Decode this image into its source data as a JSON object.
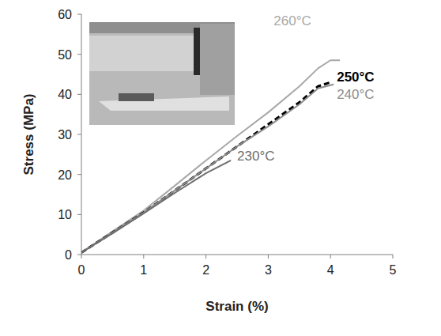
{
  "chart_data": {
    "type": "line",
    "x_label": "Strain (%)",
    "y_label": "Stress (MPa)",
    "xlim": [
      0,
      5
    ],
    "xticks": [
      0,
      1,
      2,
      3,
      4,
      5
    ],
    "ylim": [
      0,
      60
    ],
    "yticks": [
      0,
      10,
      20,
      30,
      40,
      50,
      60
    ],
    "grid": false,
    "series": [
      {
        "name": "260°C",
        "color": "#a8a8a8",
        "line_style": "solid",
        "x": [
          0,
          0.5,
          1,
          1.5,
          2,
          2.5,
          3,
          3.5,
          3.8,
          4.0,
          4.15
        ],
        "values": [
          0.5,
          5.8,
          11,
          17.2,
          23.5,
          29.6,
          35.5,
          42,
          46.5,
          48.5,
          48.5
        ]
      },
      {
        "name": "250°C",
        "color": "#000000",
        "line_style": "dashed",
        "x": [
          0,
          0.5,
          1,
          1.5,
          2,
          2.5,
          3,
          3.5,
          3.8,
          4.0
        ],
        "values": [
          0.5,
          5.5,
          10.5,
          16,
          21.5,
          27,
          32.5,
          38,
          42,
          43
        ]
      },
      {
        "name": "240°C",
        "color": "#8c8c8c",
        "line_style": "solid",
        "x": [
          0,
          0.5,
          1,
          1.5,
          2,
          2.5,
          3,
          3.5,
          3.8,
          4.05
        ],
        "values": [
          0.5,
          5.5,
          10.5,
          16,
          21.5,
          27,
          32,
          37.5,
          41.5,
          42.5
        ]
      },
      {
        "name": "230°C",
        "color": "#6e6e6e",
        "line_style": "solid",
        "x": [
          0,
          0.5,
          1,
          1.5,
          2,
          2.4
        ],
        "values": [
          0.5,
          5.3,
          10.3,
          15.4,
          20.3,
          23.5
        ]
      }
    ]
  }
}
